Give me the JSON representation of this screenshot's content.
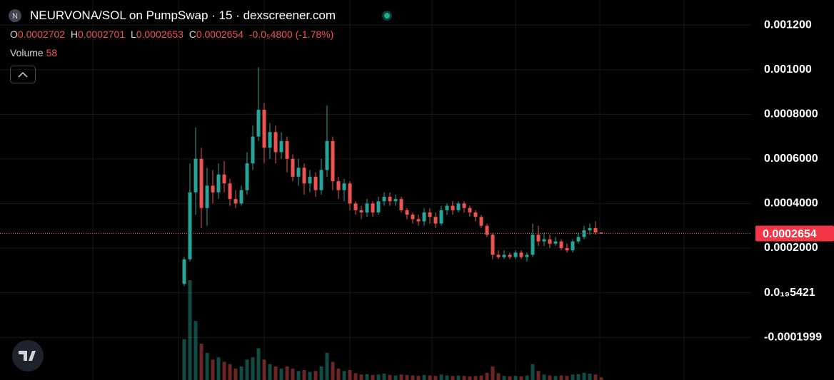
{
  "chart_data": {
    "type": "candlestick",
    "title": "NEURVONA/SOL on PumpSwap · 15 · dexscreener.com",
    "logo_letter": "N",
    "ohlc_labels": [
      "O",
      "H",
      "L",
      "C"
    ],
    "change": "-0.0₅4800 (-1.78%)",
    "volume_label": "Volume",
    "up_color": "#26a69a",
    "down_color": "#ef5350",
    "ylim": [
      -0.000391,
      0.001312
    ],
    "yticks": [
      {
        "value": 0.0012,
        "label": "0.001200"
      },
      {
        "value": 0.001,
        "label": "0.001000"
      },
      {
        "value": 0.0008,
        "label": "0.0008000"
      },
      {
        "value": 0.0006,
        "label": "0.0006000"
      },
      {
        "value": 0.0004,
        "label": "0.0004000"
      },
      {
        "value": 0.0002,
        "label": "0.0002000"
      },
      {
        "value": 5.421e-20,
        "label": "0.0₁₉5421"
      },
      -0.0001999
    ],
    "grid": true,
    "candles": [
      [
        4e-05,
        0.00016,
        3e-05,
        0.00015
      ],
      [
        0.00015,
        0.00058,
        0.00014,
        0.00045
      ],
      [
        0.00045,
        0.00074,
        0.00035,
        0.0006
      ],
      [
        0.0006,
        0.00065,
        0.00029,
        0.00038
      ],
      [
        0.00038,
        0.00056,
        0.0003,
        0.00048
      ],
      [
        0.00048,
        0.00055,
        0.0004,
        0.00045
      ],
      [
        0.00045,
        0.00058,
        0.00042,
        0.00053
      ],
      [
        0.00053,
        0.00059,
        0.00045,
        0.00049
      ],
      [
        0.00049,
        0.00051,
        0.00039,
        0.00042
      ],
      [
        0.00042,
        0.00046,
        0.00038,
        0.0004
      ],
      [
        0.0004,
        0.00048,
        0.00039,
        0.00046
      ],
      [
        0.00046,
        0.00063,
        0.00044,
        0.00058
      ],
      [
        0.00058,
        0.00075,
        0.00055,
        0.0007
      ],
      [
        0.0007,
        0.00101,
        0.00068,
        0.00082
      ],
      [
        0.00082,
        0.00085,
        0.00058,
        0.00065
      ],
      [
        0.00065,
        0.00076,
        0.0006,
        0.00072
      ],
      [
        0.00072,
        0.00075,
        0.00058,
        0.00063
      ],
      [
        0.00063,
        0.00072,
        0.0006,
        0.00068
      ],
      [
        0.00068,
        0.0007,
        0.00054,
        0.0006
      ],
      [
        0.0006,
        0.00062,
        0.0005,
        0.00052
      ],
      [
        0.00052,
        0.0006,
        0.00048,
        0.00056
      ],
      [
        0.00056,
        0.00058,
        0.00044,
        0.00049
      ],
      [
        0.00049,
        0.00055,
        0.00045,
        0.00052
      ],
      [
        0.00052,
        0.00054,
        0.00043,
        0.00046
      ],
      [
        0.00046,
        0.0006,
        0.00044,
        0.00055
      ],
      [
        0.00055,
        0.00084,
        0.00052,
        0.00068
      ],
      [
        0.00068,
        0.0007,
        0.00046,
        0.0005
      ],
      [
        0.0005,
        0.00052,
        0.00042,
        0.00046
      ],
      [
        0.00046,
        0.00051,
        0.00041,
        0.00049
      ],
      [
        0.00049,
        0.0005,
        0.00037,
        0.0004
      ],
      [
        0.0004,
        0.00041,
        0.00035,
        0.00037
      ],
      [
        0.00037,
        0.00039,
        0.00033,
        0.00036
      ],
      [
        0.00036,
        0.00042,
        0.00034,
        0.0004
      ],
      [
        0.0004,
        0.00041,
        0.00034,
        0.00036
      ],
      [
        0.00036,
        0.00043,
        0.00035,
        0.00041
      ],
      [
        0.00041,
        0.00045,
        0.00039,
        0.00043
      ],
      [
        0.00043,
        0.00045,
        0.00039,
        0.00041
      ],
      [
        0.00041,
        0.00044,
        0.00039,
        0.00042
      ],
      [
        0.00042,
        0.00043,
        0.00036,
        0.00037
      ],
      [
        0.00037,
        0.00038,
        0.00033,
        0.00035
      ],
      [
        0.00035,
        0.00036,
        0.00031,
        0.00033
      ],
      [
        0.00033,
        0.00035,
        0.0003,
        0.00032
      ],
      [
        0.00032,
        0.00038,
        0.0003,
        0.00036
      ],
      [
        0.00036,
        0.00038,
        0.00031,
        0.00034
      ],
      [
        0.00034,
        0.00036,
        0.00029,
        0.00031
      ],
      [
        0.00031,
        0.00039,
        0.0003,
        0.00037
      ],
      [
        0.00037,
        0.0004,
        0.00035,
        0.00039
      ],
      [
        0.00039,
        0.00041,
        0.00035,
        0.00037
      ],
      [
        0.00037,
        0.00041,
        0.00036,
        0.0004
      ],
      [
        0.0004,
        0.00041,
        0.00036,
        0.00038
      ],
      [
        0.00038,
        0.00039,
        0.00034,
        0.00036
      ],
      [
        0.00036,
        0.00037,
        0.00032,
        0.00034
      ],
      [
        0.00034,
        0.00035,
        0.00029,
        0.0003
      ],
      [
        0.0003,
        0.00031,
        0.00025,
        0.00026
      ],
      [
        0.00026,
        0.00027,
        0.00015,
        0.00017
      ],
      [
        0.00017,
        0.00019,
        0.00015,
        0.00016
      ],
      [
        0.00016,
        0.00019,
        0.00015,
        0.00017
      ],
      [
        0.00017,
        0.00018,
        0.00015,
        0.00016
      ],
      [
        0.00016,
        0.00019,
        0.00015,
        0.00018
      ],
      [
        0.00018,
        0.00019,
        0.00015,
        0.00016
      ],
      [
        0.00016,
        0.00018,
        0.00014,
        0.00017
      ],
      [
        0.00017,
        0.00031,
        0.00016,
        0.00026
      ],
      [
        0.00026,
        0.0003,
        0.00021,
        0.00023
      ],
      [
        0.00023,
        0.00027,
        0.00021,
        0.00024
      ],
      [
        0.00024,
        0.00026,
        0.0002,
        0.00022
      ],
      [
        0.00022,
        0.00025,
        0.00021,
        0.00023
      ],
      [
        0.00023,
        0.00024,
        0.00019,
        0.0002
      ],
      [
        0.0002,
        0.00022,
        0.00018,
        0.00019
      ],
      [
        0.00019,
        0.00024,
        0.00018,
        0.00023
      ],
      [
        0.00023,
        0.00027,
        0.00022,
        0.00025
      ],
      [
        0.00025,
        0.0003,
        0.00024,
        0.00028
      ],
      [
        0.00028,
        0.00031,
        0.00026,
        0.00029
      ],
      [
        0.00029,
        0.00032,
        0.00026,
        0.0002702
      ],
      [
        0.0002702,
        0.0002701,
        0.0002653,
        0.0002654
      ]
    ],
    "volume": [
      900,
      2200,
      1300,
      800,
      600,
      450,
      500,
      400,
      350,
      250,
      300,
      450,
      500,
      700,
      450,
      350,
      300,
      250,
      300,
      250,
      200,
      220,
      180,
      200,
      300,
      600,
      400,
      250,
      200,
      220,
      150,
      120,
      130,
      110,
      120,
      140,
      110,
      100,
      120,
      110,
      100,
      90,
      110,
      100,
      90,
      120,
      100,
      90,
      100,
      90,
      80,
      90,
      100,
      160,
      300,
      150,
      90,
      80,
      90,
      80,
      100,
      350,
      200,
      120,
      100,
      90,
      100,
      90,
      120,
      130,
      160,
      140,
      120,
      58
    ]
  }
}
